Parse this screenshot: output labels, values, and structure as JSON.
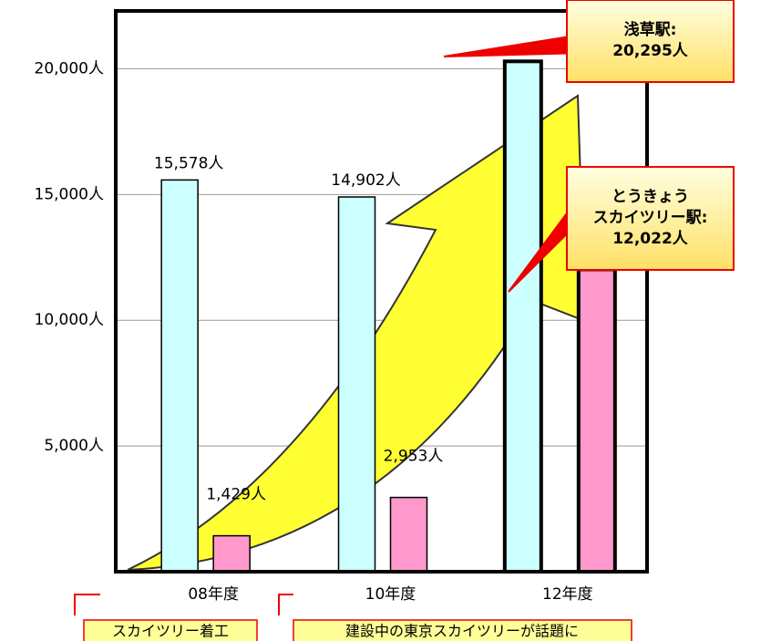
{
  "chart_data": {
    "type": "bar",
    "categories": [
      "08年度",
      "10年度",
      "12年度"
    ],
    "series": [
      {
        "name": "浅草駅:",
        "color": "#ccffff",
        "values": [
          15578,
          14902,
          20295
        ],
        "value_labels": [
          "15,578人",
          "14,902人",
          "20,295人"
        ]
      },
      {
        "name": "とうきょう\nスカイツリー駅:",
        "color": "#ff99cc",
        "values": [
          1429,
          2953,
          12022
        ],
        "value_labels": [
          "1,429人",
          "2,953人",
          "12,022人"
        ]
      }
    ],
    "ylim": [
      0,
      22300
    ],
    "yticks": [
      {
        "value": 5000,
        "label": "5,000人"
      },
      {
        "value": 10000,
        "label": "10,000人"
      },
      {
        "value": 15000,
        "label": "15,000人"
      },
      {
        "value": 20000,
        "label": "20,000人"
      }
    ],
    "grid": true,
    "annotations": [
      "スカイツリー着工",
      "建設中の東京スカイツリーが話題に"
    ]
  }
}
